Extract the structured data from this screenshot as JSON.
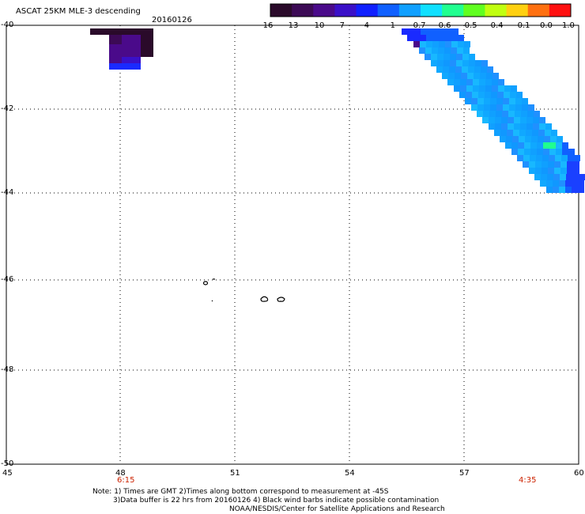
{
  "header": {
    "title": "ASCAT 25KM MLE-3 descending",
    "date": "20160126"
  },
  "colorbar": {
    "tick_labels": [
      "-16",
      "-13",
      "-10",
      "-7",
      "-4",
      "-1",
      "-0.7",
      "-0.6",
      "-0.5",
      "-0.4",
      "-0.1",
      "0.0",
      "1.0"
    ],
    "colors": [
      "#2a0a2a",
      "#3c0a55",
      "#4a0a8a",
      "#3a10c8",
      "#1020ff",
      "#1060ff",
      "#10a0ff",
      "#10e0ff",
      "#20ff90",
      "#60ff20",
      "#c0ff10",
      "#ffd010",
      "#ff7010",
      "#ff1010"
    ]
  },
  "axes": {
    "x_ticks": [
      "45",
      "48",
      "51",
      "54",
      "57",
      "60"
    ],
    "y_ticks": [
      "-40",
      "-42",
      "-44",
      "-46",
      "-48",
      "-50"
    ],
    "time_labels": [
      "6:15",
      "4:35"
    ],
    "time_color": "#cc2200"
  },
  "notes": {
    "line1": "Note: 1) Times are GMT 2)Times along bottom correspond to measurement at -45S",
    "line2": "3)Data buffer is 22 hrs from 20160126 4) Black wind barbs indicate possible contamination",
    "line3": "NOAA/NESDIS/Center for Satellite Applications and Research"
  }
}
